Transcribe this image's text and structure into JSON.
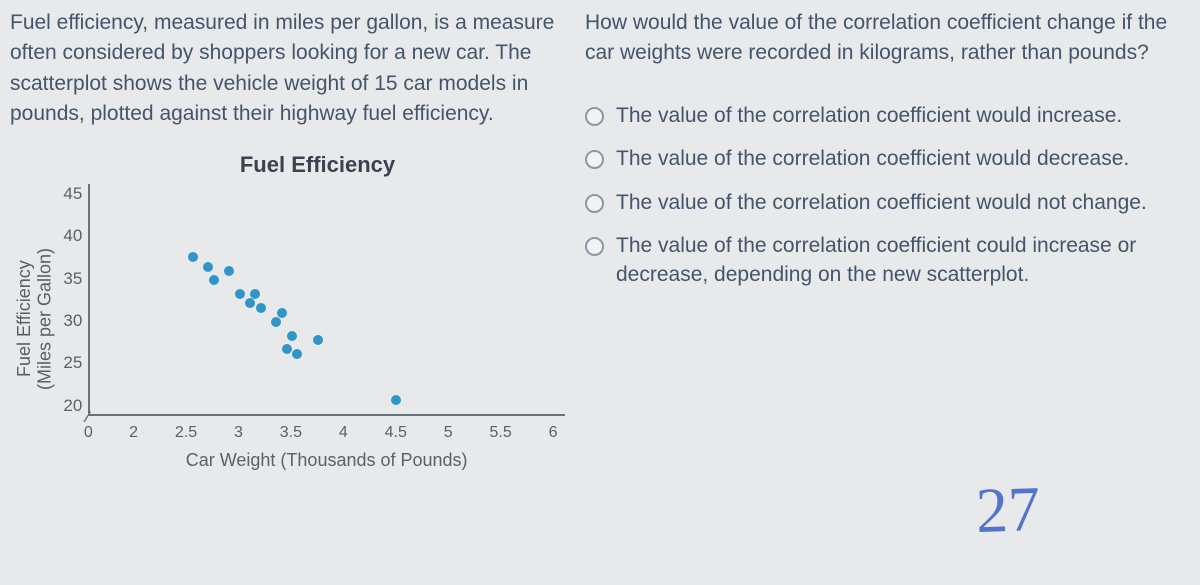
{
  "intro_text": "Fuel efficiency, measured in miles per gallon, is a measure often considered by shoppers looking for a new car. The scatterplot shows the vehicle weight of 15 car models in pounds, plotted against their highway fuel efficiency.",
  "question_text": "How would the value of the correlation coefficient change if the car weights were recorded in kilograms, rather than pounds?",
  "options": [
    "The value of the correlation coefficient would increase.",
    "The value of the correlation coefficient would decrease.",
    "The value of the correlation coefficient would not change.",
    "The value of the correlation coefficient could increase or decrease, depending on the new scatterplot."
  ],
  "chart": {
    "type": "scatter",
    "title": "Fuel Efficiency",
    "y_axis_label_line1": "Fuel Efficiency",
    "y_axis_label_line2": "(Miles per Gallon)",
    "x_axis_label": "Car Weight (Thousands of Pounds)",
    "y_ticks": [
      "45",
      "40",
      "35",
      "30",
      "25",
      "20"
    ],
    "y_min": 20,
    "y_max": 45,
    "x_ticks": [
      {
        "label": "0",
        "pos": 0.0
      },
      {
        "label": "2",
        "pos": 0.095
      },
      {
        "label": "2.5",
        "pos": 0.205
      },
      {
        "label": "3",
        "pos": 0.315
      },
      {
        "label": "3.5",
        "pos": 0.425
      },
      {
        "label": "4",
        "pos": 0.535
      },
      {
        "label": "4.5",
        "pos": 0.645
      },
      {
        "label": "5",
        "pos": 0.755
      },
      {
        "label": "5.5",
        "pos": 0.865
      },
      {
        "label": "6",
        "pos": 0.975
      }
    ],
    "x_min": 2.0,
    "x_max": 6.0,
    "x_break_start": 0.0,
    "x_break_end": 0.095,
    "point_color": "#2f96c7",
    "background_color": "#e8e9eb",
    "axis_color": "#6b707a",
    "tick_font_size": 17,
    "label_font_size": 18,
    "title_font_size": 22,
    "points": [
      {
        "x": 2.55,
        "y": 37.0
      },
      {
        "x": 2.7,
        "y": 36.0
      },
      {
        "x": 2.75,
        "y": 34.5
      },
      {
        "x": 2.9,
        "y": 35.5
      },
      {
        "x": 3.0,
        "y": 33.0
      },
      {
        "x": 3.1,
        "y": 32.0
      },
      {
        "x": 3.15,
        "y": 33.0
      },
      {
        "x": 3.2,
        "y": 31.5
      },
      {
        "x": 3.35,
        "y": 30.0
      },
      {
        "x": 3.4,
        "y": 31.0
      },
      {
        "x": 3.45,
        "y": 27.0
      },
      {
        "x": 3.5,
        "y": 28.5
      },
      {
        "x": 3.55,
        "y": 26.5
      },
      {
        "x": 3.75,
        "y": 28.0
      },
      {
        "x": 4.5,
        "y": 21.5
      }
    ]
  },
  "handwriting": "27",
  "handwriting_color": "#3861c4"
}
